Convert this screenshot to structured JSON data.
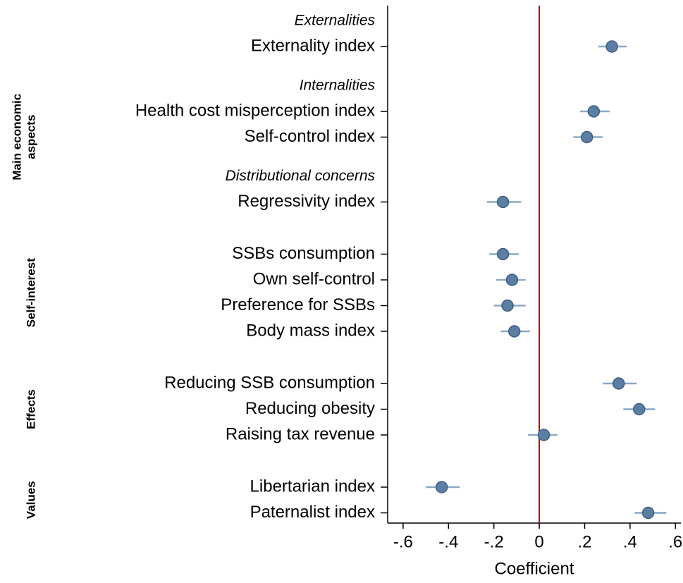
{
  "chart_data": {
    "type": "coefplot",
    "xlabel": "Coefficient",
    "xlim": [
      -0.668,
      0.624
    ],
    "xticks": [
      {
        "value": -0.6,
        "label": "-.6"
      },
      {
        "value": -0.4,
        "label": "-.4"
      },
      {
        "value": -0.2,
        "label": "-.2"
      },
      0,
      {
        "value": 0.2,
        "label": ".2"
      },
      {
        "value": 0.4,
        "label": ".4"
      },
      {
        "value": 0.6,
        "label": ".6"
      }
    ],
    "refline": 0,
    "refline_color": "#8b1a1a",
    "marker_color": "#5b7fa3",
    "ci_color": "#8aa8c8",
    "groups": [
      {
        "label": [
          "Main economic",
          "aspects"
        ],
        "subgroups": [
          {
            "heading": "Externalities",
            "categories": [
              "Externality index"
            ],
            "values": [
              0.32
            ],
            "ci_low": [
              0.26
            ],
            "ci_high": [
              0.385
            ]
          },
          {
            "heading": "Internalities",
            "categories": [
              "Health cost misperception index",
              "Self-control index"
            ],
            "values": [
              0.24,
              0.21
            ],
            "ci_low": [
              0.18,
              0.15
            ],
            "ci_high": [
              0.31,
              0.28
            ]
          },
          {
            "heading": "Distributional concerns",
            "categories": [
              "Regressivity index"
            ],
            "values": [
              -0.16
            ],
            "ci_low": [
              -0.23
            ],
            "ci_high": [
              -0.08
            ]
          }
        ]
      },
      {
        "label": [
          "Self-interest"
        ],
        "subgroups": [
          {
            "categories": [
              "SSBs consumption",
              "Own self-control",
              "Preference for SSBs",
              "Body mass index"
            ],
            "values": [
              -0.16,
              -0.12,
              -0.14,
              -0.11
            ],
            "ci_low": [
              -0.22,
              -0.19,
              -0.2,
              -0.17
            ],
            "ci_high": [
              -0.09,
              -0.06,
              -0.06,
              -0.04
            ]
          }
        ]
      },
      {
        "label": [
          "Effects"
        ],
        "subgroups": [
          {
            "categories": [
              "Reducing SSB consumption",
              "Reducing obesity",
              "Raising tax revenue"
            ],
            "values": [
              0.35,
              0.44,
              0.02
            ],
            "ci_low": [
              0.28,
              0.37,
              -0.05
            ],
            "ci_high": [
              0.43,
              0.51,
              0.08
            ]
          }
        ]
      },
      {
        "label": [
          "Values"
        ],
        "subgroups": [
          {
            "categories": [
              "Libertarian index",
              "Paternalist index"
            ],
            "values": [
              -0.43,
              0.48
            ],
            "ci_low": [
              -0.5,
              0.42
            ],
            "ci_high": [
              -0.35,
              0.56
            ]
          }
        ]
      }
    ]
  }
}
